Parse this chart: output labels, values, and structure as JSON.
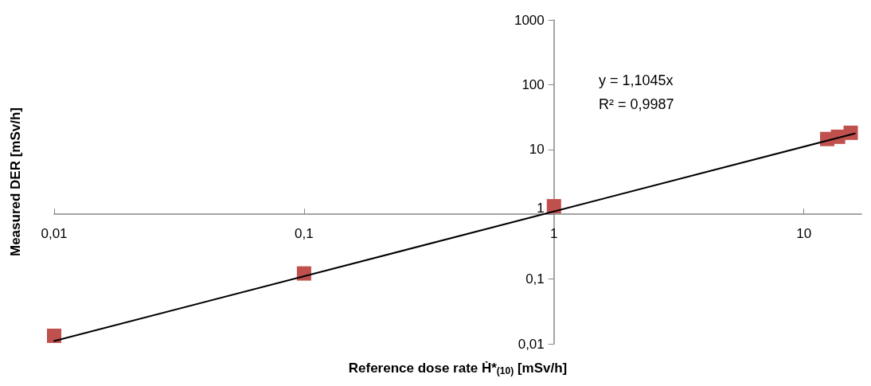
{
  "chart_data": {
    "type": "scatter",
    "xlabel": "Reference dose rate Ḣ*$_{(10)}$ [mSv/h]",
    "ylabel": "Measured DER [mSv/h]",
    "annotations": [
      "y = 1,1045x",
      "R² = 0,9987"
    ],
    "log": "xy",
    "grid": false,
    "legend": false,
    "marker": "square",
    "xlim": [
      0.01,
      17
    ],
    "ylim": [
      0.01,
      1000
    ],
    "xticks": [
      {
        "value": 0.01,
        "label": "0,01"
      },
      {
        "value": 0.1,
        "label": "0,1"
      },
      1,
      10
    ],
    "yticks": [
      {
        "value": 0.01,
        "label": "0,01"
      },
      {
        "value": 0.1,
        "label": "0,1"
      },
      1,
      10,
      100,
      1000
    ],
    "series": [
      {
        "type": "scatter",
        "color": "#c0504d",
        "x": [
          0.01,
          0.1,
          1,
          12.4,
          13.7,
          15.4
        ],
        "values": [
          0.0133,
          0.122,
          1.33,
          14.5,
          15.7,
          18.1
        ]
      },
      {
        "type": "line",
        "color": "#000000",
        "marker": "none",
        "line_style": "solid",
        "x": [
          0.01,
          16
        ],
        "values": [
          0.011045,
          17.672
        ]
      }
    ]
  }
}
